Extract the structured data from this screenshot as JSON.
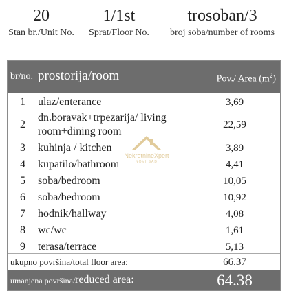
{
  "header": {
    "unit_value": "20",
    "unit_label": "Stan br./Unit No.",
    "floor_value": "1/1st",
    "floor_label": "Sprat/Floor No.",
    "rooms_value": "trosoban/3",
    "rooms_label": "broj soba/number of rooms"
  },
  "table": {
    "col_no": "br/no.",
    "col_room": "prostorija/room",
    "col_area": "Pov./ Area (m",
    "col_area_sup": "2",
    "col_area_close": ")",
    "rows": [
      {
        "no": "1",
        "room": "ulaz/enterance",
        "area": "3,69"
      },
      {
        "no": "2",
        "room": "dn.boravak+trpezarija/ living room+dining room",
        "area": "22,59"
      },
      {
        "no": "3",
        "room": "kuhinja / kitchen",
        "area": "3,89"
      },
      {
        "no": "4",
        "room": "kupatilo/bathroom",
        "area": "4,41"
      },
      {
        "no": "5",
        "room": "soba/bedroom",
        "area": "10,05"
      },
      {
        "no": "6",
        "room": "soba/bedroom",
        "area": "10,92"
      },
      {
        "no": "7",
        "room": "hodnik/hallway",
        "area": "4,08"
      },
      {
        "no": "8",
        "room": "wc/wc",
        "area": "1,61"
      },
      {
        "no": "9",
        "room": "terasa/terrace",
        "area": "5,13"
      }
    ],
    "total_label": "ukupno površina/total floor area:",
    "total_value": "66.37",
    "reduced_label_a": "umanjena površina/",
    "reduced_label_b": "reduced area:",
    "reduced_value": "64.38"
  },
  "watermark": {
    "name": "NekretnineXpert",
    "city": "NOVI SAD",
    "color": "#c9a14a"
  },
  "colors": {
    "header_band": "#6d6d6d",
    "text": "#222222"
  }
}
